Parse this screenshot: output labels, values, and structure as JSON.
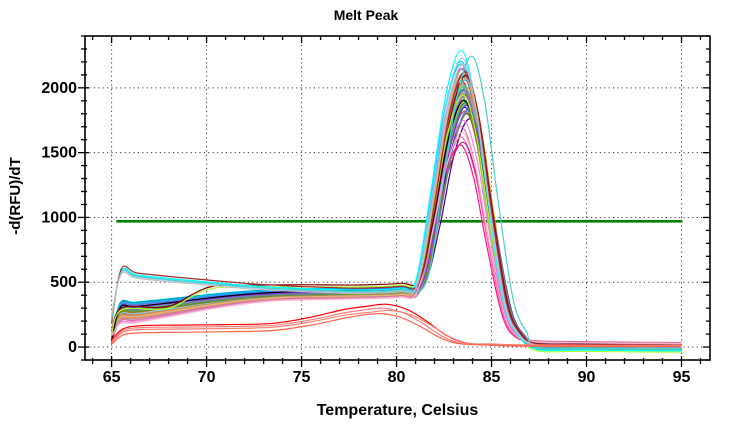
{
  "chart_data": {
    "type": "line",
    "title": "Melt Peak",
    "xlabel": "Temperature, Celsius",
    "ylabel": "-d(RFU)/dT",
    "background": "#ffffff",
    "axes": {
      "xlim": [
        63.6,
        96.5
      ],
      "ylim": [
        -100,
        2400
      ],
      "xticks": [
        65,
        70,
        75,
        80,
        85,
        90,
        95
      ],
      "yticks": [
        0,
        500,
        1000,
        1500,
        2000
      ],
      "x_minor_step": 1,
      "y_minor_step": 100,
      "grid_style": "dotted",
      "grid_color": "#3a3a3a",
      "frame_color": "#000000"
    },
    "threshold": {
      "value": 970,
      "x_start": 65.25,
      "x_end": 95.05,
      "color": "#008000"
    },
    "series": [
      {
        "c": "#FF00FF",
        "k": "main",
        "s": 60,
        "b": 320,
        "p": 430,
        "A": 2150,
        "T": 83.45,
        "e": 20
      },
      {
        "c": "#00CED1",
        "k": "main",
        "s": 80,
        "b": 340,
        "p": 445,
        "A": 2185,
        "T": 83.4,
        "e": -10
      },
      {
        "c": "#0000CD",
        "k": "main",
        "s": 45,
        "b": 300,
        "p": 420,
        "A": 1850,
        "T": 83.6,
        "e": 15
      },
      {
        "c": "#000080",
        "k": "main",
        "s": 30,
        "b": 290,
        "p": 410,
        "A": 1800,
        "T": 83.7,
        "e": 5
      },
      {
        "c": "#006400",
        "k": "main",
        "s": 70,
        "b": 330,
        "p": 435,
        "A": 1950,
        "T": 83.55,
        "e": 25
      },
      {
        "c": "#228B22",
        "k": "main",
        "s": 55,
        "b": 310,
        "p": 425,
        "A": 1900,
        "T": 83.5,
        "e": -20
      },
      {
        "c": "#8B0000",
        "k": "main",
        "s": 40,
        "b": 295,
        "p": 415,
        "A": 2100,
        "T": 83.65,
        "e": 10
      },
      {
        "c": "#DC143C",
        "k": "main",
        "s": 65,
        "b": 285,
        "p": 405,
        "A": 2050,
        "T": 83.45,
        "e": 30
      },
      {
        "c": "#FF8C00",
        "k": "main",
        "s": 35,
        "b": 260,
        "p": 400,
        "A": 2120,
        "T": 83.55,
        "e": -5
      },
      {
        "c": "#DAA520",
        "k": "main",
        "s": 50,
        "b": 270,
        "p": 410,
        "A": 2000,
        "T": 83.75,
        "e": 15
      },
      {
        "c": "#9932CC",
        "k": "main",
        "s": 75,
        "b": 315,
        "p": 430,
        "A": 1980,
        "T": 83.5,
        "e": 0
      },
      {
        "c": "#4B0082",
        "k": "main",
        "s": 25,
        "b": 305,
        "p": 420,
        "A": 1760,
        "T": 83.85,
        "e": 20
      },
      {
        "c": "#FF69B4",
        "k": "main",
        "s": 90,
        "b": 235,
        "p": 385,
        "A": 1620,
        "T": 83.4,
        "e": 35
      },
      {
        "c": "#C71585",
        "k": "main",
        "s": 85,
        "b": 225,
        "p": 380,
        "A": 1580,
        "T": 83.5,
        "e": 28
      },
      {
        "c": "#20B2AA",
        "k": "main",
        "s": 60,
        "b": 325,
        "p": 440,
        "A": 2060,
        "T": 83.6,
        "e": -15
      },
      {
        "c": "#008B8B",
        "k": "main",
        "s": 45,
        "b": 335,
        "p": 445,
        "A": 1990,
        "T": 83.55,
        "e": 8
      },
      {
        "c": "#556B2F",
        "k": "main",
        "s": 38,
        "b": 300,
        "p": 415,
        "A": 1870,
        "T": 83.7,
        "e": 18
      },
      {
        "c": "#9ACD32",
        "k": "main",
        "s": 95,
        "b": 280,
        "p": 400,
        "A": 1930,
        "T": 83.45,
        "e": -25
      },
      {
        "c": "#32CD32",
        "k": "main",
        "s": 66,
        "b": 290,
        "p": 410,
        "A": 2010,
        "T": 83.55,
        "e": 12
      },
      {
        "c": "#2E8B57",
        "k": "main",
        "s": 52,
        "b": 310,
        "p": 428,
        "A": 1890,
        "T": 83.65,
        "e": 22
      },
      {
        "c": "#B8860B",
        "k": "main",
        "s": 42,
        "b": 265,
        "p": 398,
        "A": 1940,
        "T": 83.75,
        "e": 6
      },
      {
        "c": "#D2691E",
        "k": "main",
        "s": 58,
        "b": 255,
        "p": 392,
        "A": 2030,
        "T": 83.5,
        "e": 16
      },
      {
        "c": "#A0522D",
        "k": "main",
        "s": 47,
        "b": 245,
        "p": 388,
        "A": 1820,
        "T": 83.6,
        "e": 26
      },
      {
        "c": "#FF1493",
        "k": "main",
        "s": 100,
        "b": 215,
        "p": 370,
        "A": 1560,
        "T": 83.35,
        "e": 32
      },
      {
        "c": "#BA55D3",
        "k": "main",
        "s": 72,
        "b": 320,
        "p": 432,
        "A": 1970,
        "T": 83.55,
        "e": 2
      },
      {
        "c": "#7B68EE",
        "k": "main",
        "s": 33,
        "b": 295,
        "p": 412,
        "A": 1840,
        "T": 83.8,
        "e": 14
      },
      {
        "c": "#4169E1",
        "k": "main",
        "s": 62,
        "b": 305,
        "p": 422,
        "A": 2090,
        "T": 83.5,
        "e": -8
      },
      {
        "c": "#1E90FF",
        "k": "main",
        "s": 78,
        "b": 315,
        "p": 434,
        "A": 2140,
        "T": 83.45,
        "e": 4
      },
      {
        "c": "#00BFFF",
        "k": "main",
        "s": 88,
        "b": 330,
        "p": 442,
        "A": 2205,
        "T": 83.4,
        "e": -18
      },
      {
        "c": "#87CEEB",
        "k": "main",
        "s": 44,
        "b": 250,
        "p": 390,
        "A": 1910,
        "T": 83.6,
        "e": 24
      },
      {
        "c": "#5F9EA0",
        "k": "main",
        "s": 54,
        "b": 285,
        "p": 408,
        "A": 1960,
        "T": 83.7,
        "e": 9
      },
      {
        "c": "#66CDAA",
        "k": "main",
        "s": 68,
        "b": 295,
        "p": 418,
        "A": 2020,
        "T": 83.55,
        "e": -12
      },
      {
        "c": "#3CB371",
        "k": "main",
        "s": 36,
        "b": 275,
        "p": 402,
        "A": 1880,
        "T": 83.65,
        "e": 19
      },
      {
        "c": "#6B8E23",
        "k": "main",
        "s": 48,
        "b": 265,
        "p": 396,
        "A": 1805,
        "T": 83.75,
        "e": 29
      },
      {
        "c": "#CD853F",
        "k": "main",
        "s": 82,
        "b": 240,
        "p": 386,
        "A": 2110,
        "T": 83.5,
        "e": 11
      },
      {
        "c": "#DEB887",
        "k": "main",
        "s": 92,
        "b": 230,
        "p": 382,
        "A": 2160,
        "T": 83.55,
        "e": 21
      },
      {
        "c": "#F4A460",
        "k": "main",
        "s": 40,
        "b": 220,
        "p": 376,
        "A": 2070,
        "T": 83.6,
        "e": 31
      },
      {
        "c": "#BC8F8F",
        "k": "main",
        "s": 56,
        "b": 210,
        "p": 372,
        "A": 1985,
        "T": 83.65,
        "e": 13
      },
      {
        "c": "#DB7093",
        "k": "main",
        "s": 30,
        "b": 200,
        "p": 368,
        "A": 1700,
        "T": 83.4,
        "e": 33
      },
      {
        "c": "#EE82EE",
        "k": "main",
        "s": 64,
        "b": 190,
        "p": 364,
        "A": 1750,
        "T": 83.5,
        "e": 23
      },
      {
        "c": "#9370DB",
        "k": "main",
        "s": 74,
        "b": 310,
        "p": 426,
        "A": 1935,
        "T": 83.6,
        "e": -28
      },
      {
        "c": "#8A2BE2",
        "k": "main",
        "s": 46,
        "b": 300,
        "p": 416,
        "A": 1865,
        "T": 83.7,
        "e": 7
      },
      {
        "c": "#708090",
        "k": "main",
        "s": 58,
        "b": 280,
        "p": 404,
        "A": 1825,
        "T": 83.8,
        "e": 17
      },
      {
        "c": "#000000",
        "k": "main",
        "s": 50,
        "b": 305,
        "p": 424,
        "A": 1905,
        "T": 83.55,
        "e": 3
      },
      {
        "c": "#FFB6C1",
        "k": "main",
        "s": 86,
        "b": 180,
        "p": 360,
        "A": 1655,
        "T": 83.45,
        "e": 27
      },
      {
        "c": "#800000",
        "k": "early",
        "s": 120,
        "b": 300,
        "p": 470,
        "A": 2095,
        "T": 83.65,
        "e": 15
      },
      {
        "c": "#ADFF2F",
        "k": "early",
        "s": 105,
        "b": 285,
        "p": 455,
        "A": 1945,
        "T": 83.5,
        "e": -40
      },
      {
        "c": "#00FFFF",
        "k": "spike",
        "s": 200,
        "b": 585,
        "A": 2290,
        "T": 83.4,
        "e": -30
      },
      {
        "c": "#87CEFA",
        "k": "spike",
        "s": 230,
        "b": 570,
        "A": 2230,
        "T": 83.45,
        "e": 0
      },
      {
        "c": "#A52A2A",
        "k": "spike",
        "s": 180,
        "b": 600,
        "A": 2125,
        "T": 83.6,
        "e": 10
      },
      {
        "c": "#48D1CC",
        "k": "spike",
        "s": 210,
        "b": 575,
        "A": 2245,
        "T": 83.95,
        "e": -22
      },
      {
        "c": "#C0C0C0",
        "k": "spike",
        "s": 250,
        "b": 560,
        "A": 2180,
        "T": 83.5,
        "e": 5
      },
      {
        "c": "#FF0000",
        "k": "ntc",
        "s": 55,
        "b": 165,
        "p": 330,
        "T": 79.5,
        "e": 6
      },
      {
        "c": "#F08080",
        "k": "ntc",
        "s": 40,
        "b": 150,
        "p": 300,
        "T": 79.3,
        "e": 10
      },
      {
        "c": "#FA8072",
        "k": "ntc",
        "s": 30,
        "b": 135,
        "p": 282,
        "T": 79.7,
        "e": 14
      },
      {
        "c": "#FF6347",
        "k": "ntc",
        "s": 20,
        "b": 110,
        "p": 258,
        "T": 79.2,
        "e": 4
      }
    ]
  }
}
